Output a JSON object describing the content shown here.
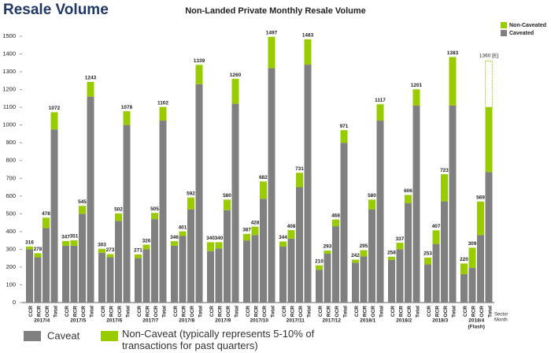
{
  "chart_data": {
    "type": "bar",
    "stacked": true,
    "heading": "Resale Volume",
    "title": "Non-Landed Private Monthly Resale Volume",
    "months": [
      "2017/4",
      "2017/5",
      "2017/6",
      "2017/7",
      "2017/8",
      "2017/9",
      "2017/10",
      "2017/11",
      "2017/12",
      "2018/1",
      "2018/2",
      "2018/3",
      "2018/4"
    ],
    "flash_note": "(Flash)",
    "sectors": [
      "CCR",
      "RCR",
      "OCR",
      "Total"
    ],
    "sector_axis_label": "Sector",
    "month_axis_label": "Month",
    "series": [
      {
        "name": "Caveated",
        "color": "#808080",
        "values": [
          [
            300,
            255,
            420,
            975
          ],
          [
            320,
            320,
            500,
            1160
          ],
          [
            280,
            255,
            460,
            1000
          ],
          [
            250,
            300,
            470,
            1025
          ],
          [
            320,
            375,
            525,
            1230
          ],
          [
            290,
            305,
            520,
            1120
          ],
          [
            350,
            380,
            585,
            1320
          ],
          [
            315,
            360,
            650,
            1340
          ],
          [
            185,
            275,
            430,
            900
          ],
          [
            225,
            260,
            525,
            1025
          ],
          [
            240,
            300,
            560,
            1110
          ],
          [
            215,
            330,
            570,
            1110
          ],
          [
            160,
            195,
            380,
            735
          ]
        ]
      },
      {
        "name": "Non-Caveated",
        "color": "#99cc00",
        "values": [
          [
            16,
            23,
            58,
            97
          ],
          [
            27,
            31,
            45,
            83
          ],
          [
            23,
            18,
            42,
            78
          ],
          [
            21,
            26,
            35,
            77
          ],
          [
            26,
            26,
            67,
            109
          ],
          [
            50,
            35,
            60,
            140
          ],
          [
            37,
            48,
            97,
            177
          ],
          [
            29,
            48,
            81,
            143
          ],
          [
            25,
            18,
            38,
            71
          ],
          [
            17,
            35,
            55,
            92
          ],
          [
            18,
            37,
            46,
            91
          ],
          [
            38,
            77,
            153,
            273
          ],
          [
            60,
            114,
            189,
            365
          ]
        ]
      }
    ],
    "totals": [
      [
        316,
        278,
        478,
        1072
      ],
      [
        347,
        351,
        545,
        1243
      ],
      [
        303,
        273,
        502,
        1078
      ],
      [
        271,
        326,
        505,
        1102
      ],
      [
        346,
        401,
        592,
        1339
      ],
      [
        340,
        340,
        580,
        1260
      ],
      [
        387,
        428,
        682,
        1497
      ],
      [
        344,
        408,
        731,
        1483
      ],
      [
        210,
        293,
        468,
        971
      ],
      [
        242,
        295,
        580,
        1117
      ],
      [
        258,
        337,
        606,
        1201
      ],
      [
        253,
        407,
        723,
        1383
      ],
      [
        220,
        309,
        569,
        null
      ]
    ],
    "estimate": {
      "value": 1360,
      "label": "1360 [E]"
    },
    "ylim": [
      0,
      1500
    ],
    "yticks": [
      0,
      100,
      200,
      300,
      400,
      500,
      600,
      700,
      800,
      900,
      1000,
      1100,
      1200,
      1300,
      1400,
      1500
    ],
    "bottom_legend": [
      "Caveat",
      "Non-Caveat (typically represents 5-10% of transactions for past quarters)"
    ]
  }
}
